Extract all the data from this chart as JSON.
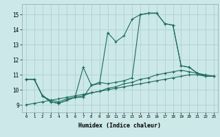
{
  "xlabel": "Humidex (Indice chaleur)",
  "bg_color": "#cce8e8",
  "grid_color": "#aacccc",
  "line_color": "#1a6b5a",
  "xlim": [
    -0.5,
    23.5
  ],
  "ylim": [
    8.5,
    15.7
  ],
  "xticks": [
    0,
    1,
    2,
    3,
    4,
    5,
    6,
    7,
    8,
    9,
    10,
    11,
    12,
    13,
    14,
    15,
    16,
    17,
    18,
    19,
    20,
    21,
    22,
    23
  ],
  "yticks": [
    9,
    10,
    11,
    12,
    13,
    14,
    15
  ],
  "series": [
    [
      10.7,
      10.7,
      9.6,
      9.2,
      9.1,
      9.3,
      9.5,
      9.5,
      10.3,
      10.4,
      13.8,
      13.2,
      13.6,
      14.7,
      15.0,
      15.1,
      15.1,
      14.4,
      14.3,
      11.6,
      11.5,
      11.1,
      10.9,
      10.9
    ],
    [
      10.7,
      10.7,
      9.6,
      9.2,
      9.1,
      9.3,
      9.5,
      11.5,
      10.3,
      10.5,
      10.4,
      10.5,
      10.6,
      10.8,
      15.0,
      15.1,
      15.1,
      14.4,
      14.3,
      11.6,
      11.5,
      11.1,
      10.9,
      10.9
    ],
    [
      10.7,
      10.7,
      9.6,
      9.3,
      9.2,
      9.4,
      9.5,
      9.6,
      9.8,
      9.9,
      10.1,
      10.2,
      10.4,
      10.5,
      10.7,
      10.8,
      11.0,
      11.1,
      11.2,
      11.3,
      11.2,
      11.1,
      11.0,
      10.9
    ],
    [
      9.0,
      9.1,
      9.2,
      9.3,
      9.4,
      9.5,
      9.6,
      9.7,
      9.8,
      9.9,
      10.0,
      10.1,
      10.2,
      10.3,
      10.4,
      10.5,
      10.6,
      10.7,
      10.8,
      10.9,
      11.0,
      11.0,
      10.9,
      10.9
    ]
  ]
}
